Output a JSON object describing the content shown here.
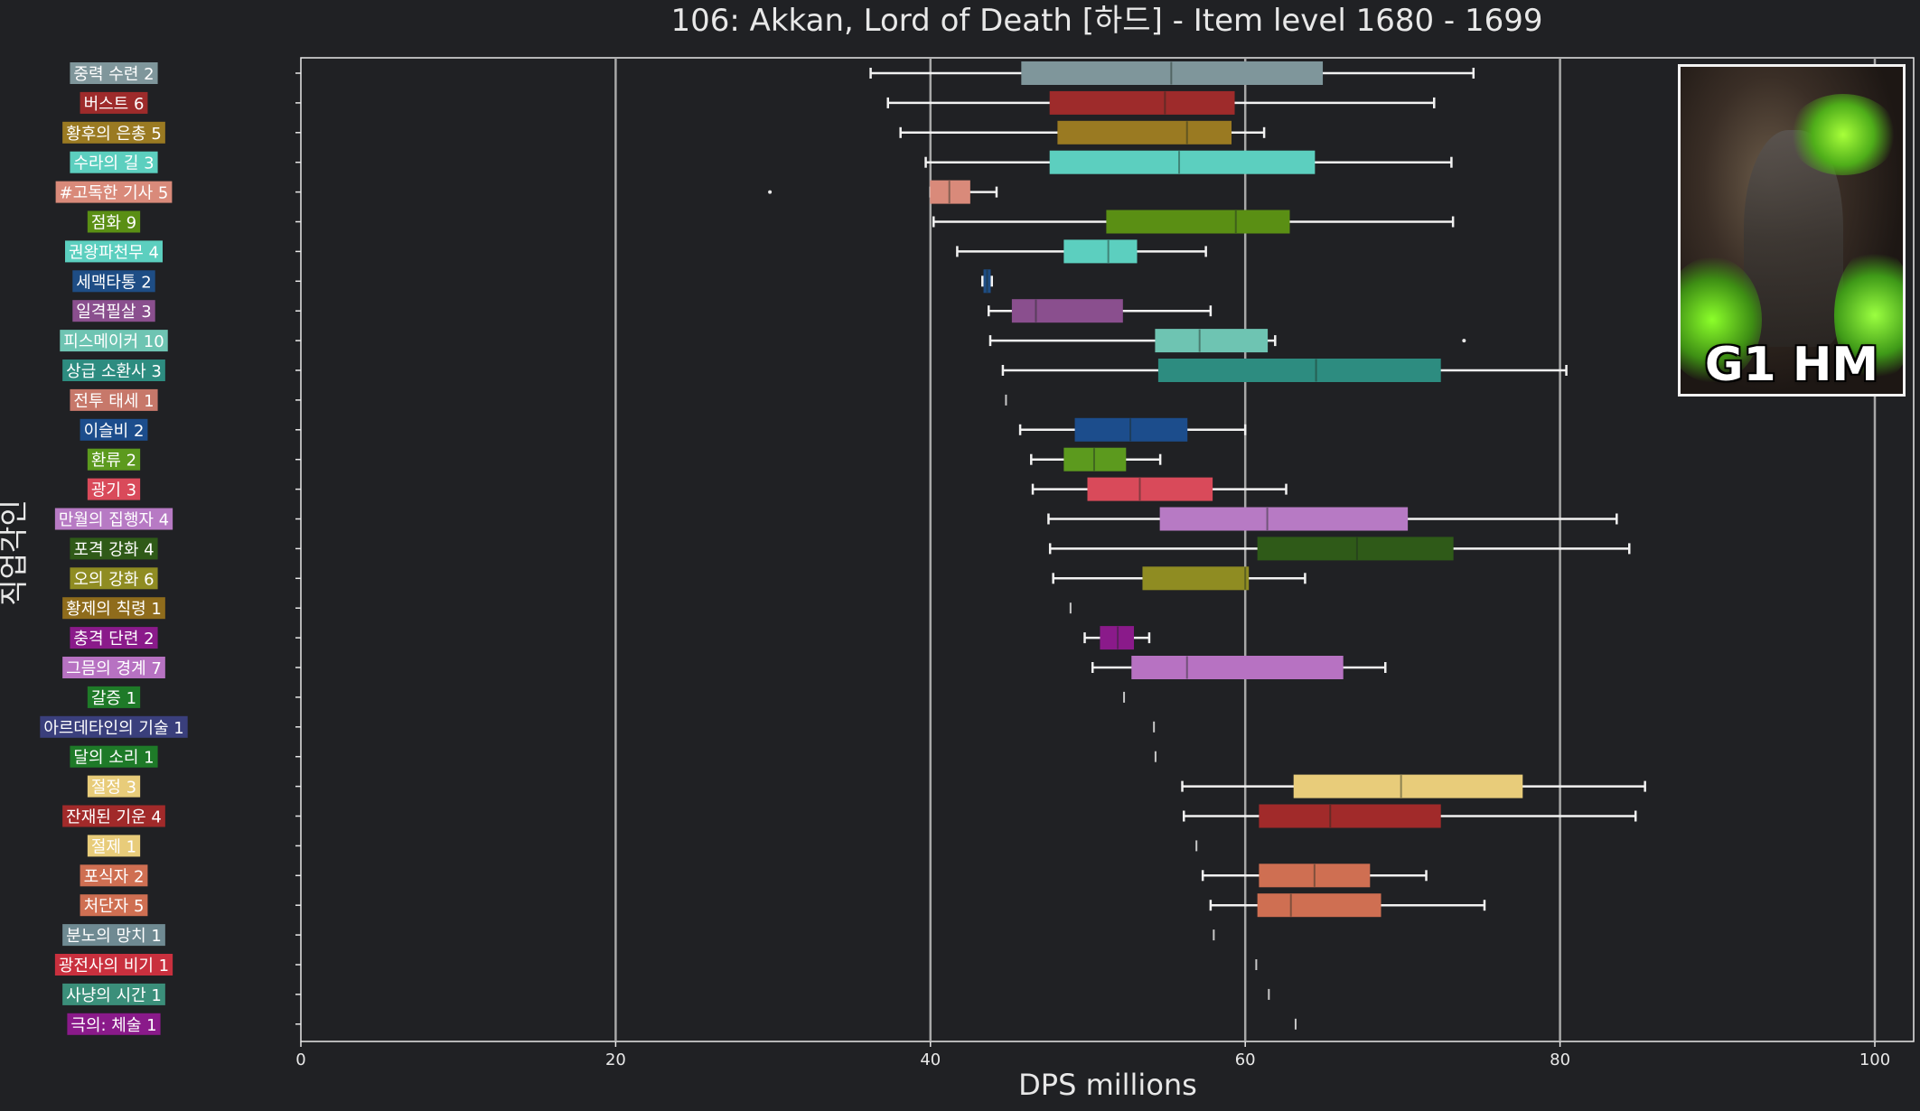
{
  "chart_data": {
    "type": "box",
    "orientation": "horizontal",
    "title": "106: Akkan, Lord of Death [하드] - Item level 1680 - 1699",
    "xlabel": "DPS millions",
    "ylabel": "직업각인",
    "xlim": [
      0,
      102
    ],
    "xticks": [
      0,
      20,
      40,
      60,
      80,
      100
    ],
    "grid": "vertical",
    "badge": "G1 HM",
    "categories": [
      {
        "label": "중력 수련 2",
        "color": "#7f969b",
        "whislo": 36.2,
        "q1": 45.8,
        "med": 55.3,
        "q3": 64.9,
        "whishi": 74.5,
        "outliers": []
      },
      {
        "label": "버스트 6",
        "color": "#9e2b2b",
        "whislo": 37.3,
        "q1": 47.6,
        "med": 54.9,
        "q3": 59.3,
        "whishi": 72.0,
        "outliers": []
      },
      {
        "label": "황후의 은총 5",
        "color": "#9a7a22",
        "whislo": 38.1,
        "q1": 48.1,
        "med": 56.3,
        "q3": 59.1,
        "whishi": 61.2,
        "outliers": []
      },
      {
        "label": "수라의 길 3",
        "color": "#5ccfbf",
        "whislo": 39.7,
        "q1": 47.6,
        "med": 55.8,
        "q3": 64.4,
        "whishi": 73.1,
        "outliers": []
      },
      {
        "label": "#고독한 기사 5",
        "color": "#d98a7a",
        "whislo": 40.0,
        "q1": 40.0,
        "med": 41.2,
        "q3": 42.5,
        "whishi": 44.2,
        "outliers": [
          29.8
        ]
      },
      {
        "label": "점화 9",
        "color": "#5a8f14",
        "whislo": 40.2,
        "q1": 51.2,
        "med": 59.4,
        "q3": 62.8,
        "whishi": 73.2,
        "outliers": []
      },
      {
        "label": "권왕파천무 4",
        "color": "#5ccfbf",
        "whislo": 41.7,
        "q1": 48.5,
        "med": 51.3,
        "q3": 53.1,
        "whishi": 57.5,
        "outliers": []
      },
      {
        "label": "세맥타통 2",
        "color": "#1e4d85",
        "whislo": 43.3,
        "q1": 43.4,
        "med": 43.6,
        "q3": 43.8,
        "whishi": 43.9,
        "outliers": []
      },
      {
        "label": "일격필살 3",
        "color": "#8a4f8e",
        "whislo": 43.7,
        "q1": 45.2,
        "med": 46.7,
        "q3": 52.2,
        "whishi": 57.8,
        "outliers": []
      },
      {
        "label": "피스메이커 10",
        "color": "#6ec4b2",
        "whislo": 43.8,
        "q1": 54.3,
        "med": 57.1,
        "q3": 61.4,
        "whishi": 61.9,
        "outliers": [
          73.9
        ]
      },
      {
        "label": "상급 소환사 3",
        "color": "#2d8c80",
        "whislo": 44.6,
        "q1": 54.5,
        "med": 64.5,
        "q3": 72.4,
        "whishi": 80.4,
        "outliers": []
      },
      {
        "label": "전투 태세 1",
        "color": "#c7786a",
        "whislo": 44.8,
        "q1": 44.8,
        "med": 44.8,
        "q3": 44.8,
        "whishi": 44.8,
        "outliers": []
      },
      {
        "label": "이슬비 2",
        "color": "#1c4d8c",
        "whislo": 45.7,
        "q1": 49.2,
        "med": 52.7,
        "q3": 56.3,
        "whishi": 60.0,
        "outliers": []
      },
      {
        "label": "환류 2",
        "color": "#5c9a1e",
        "whislo": 46.4,
        "q1": 48.5,
        "med": 50.4,
        "q3": 52.4,
        "whishi": 54.6,
        "outliers": []
      },
      {
        "label": "광기 3",
        "color": "#d94a5a",
        "whislo": 46.5,
        "q1": 50.0,
        "med": 53.3,
        "q3": 57.9,
        "whishi": 62.6,
        "outliers": []
      },
      {
        "label": "만월의 집행자 4",
        "color": "#b77ac4",
        "whislo": 47.5,
        "q1": 54.6,
        "med": 61.4,
        "q3": 70.3,
        "whishi": 83.6,
        "outliers": []
      },
      {
        "label": "포격 강화 4",
        "color": "#2f5a18",
        "whislo": 47.6,
        "q1": 60.8,
        "med": 67.1,
        "q3": 73.2,
        "whishi": 84.4,
        "outliers": []
      },
      {
        "label": "오의 강화 6",
        "color": "#8f8c22",
        "whislo": 47.8,
        "q1": 53.5,
        "med": 60.0,
        "q3": 60.2,
        "whishi": 63.8,
        "outliers": []
      },
      {
        "label": "황제의 칙령 1",
        "color": "#8f6c1c",
        "whislo": 48.9,
        "q1": 48.9,
        "med": 48.9,
        "q3": 48.9,
        "whishi": 48.9,
        "outliers": []
      },
      {
        "label": "충격 단련 2",
        "color": "#8a1a8a",
        "whislo": 49.8,
        "q1": 50.8,
        "med": 51.9,
        "q3": 52.9,
        "whishi": 53.9,
        "outliers": []
      },
      {
        "label": "그믐의 경계 7",
        "color": "#b772c2",
        "whislo": 50.3,
        "q1": 52.8,
        "med": 56.3,
        "q3": 66.2,
        "whishi": 68.9,
        "outliers": []
      },
      {
        "label": "갈증 1",
        "color": "#1e7a28",
        "whislo": 52.3,
        "q1": 52.3,
        "med": 52.3,
        "q3": 52.3,
        "whishi": 52.3,
        "outliers": []
      },
      {
        "label": "아르데타인의 기술 1",
        "color": "#3a3f7c",
        "whislo": 54.2,
        "q1": 54.2,
        "med": 54.2,
        "q3": 54.2,
        "whishi": 54.2,
        "outliers": []
      },
      {
        "label": "달의 소리 1",
        "color": "#1e7a28",
        "whislo": 54.3,
        "q1": 54.3,
        "med": 54.3,
        "q3": 54.3,
        "whishi": 54.3,
        "outliers": []
      },
      {
        "label": "절정 3",
        "color": "#e8cc7a",
        "whislo": 56.0,
        "q1": 63.1,
        "med": 69.9,
        "q3": 77.6,
        "whishi": 85.4,
        "outliers": []
      },
      {
        "label": "잔재된 기운 4",
        "color": "#a12a2a",
        "whislo": 56.1,
        "q1": 60.9,
        "med": 65.4,
        "q3": 72.4,
        "whishi": 84.8,
        "outliers": []
      },
      {
        "label": "절제 1",
        "color": "#e8cc7a",
        "whislo": 56.9,
        "q1": 56.9,
        "med": 56.9,
        "q3": 56.9,
        "whishi": 56.9,
        "outliers": []
      },
      {
        "label": "포식자 2",
        "color": "#cf6f52",
        "whislo": 57.3,
        "q1": 60.9,
        "med": 64.4,
        "q3": 67.9,
        "whishi": 71.5,
        "outliers": []
      },
      {
        "label": "처단자 5",
        "color": "#cf6f52",
        "whislo": 57.8,
        "q1": 60.8,
        "med": 62.9,
        "q3": 68.6,
        "whishi": 75.2,
        "outliers": []
      },
      {
        "label": "분노의 망치 1",
        "color": "#6f8a92",
        "whislo": 58.0,
        "q1": 58.0,
        "med": 58.0,
        "q3": 58.0,
        "whishi": 58.0,
        "outliers": []
      },
      {
        "label": "광전사의 비기 1",
        "color": "#c9303e",
        "whislo": 60.7,
        "q1": 60.7,
        "med": 60.7,
        "q3": 60.7,
        "whishi": 60.7,
        "outliers": []
      },
      {
        "label": "사냥의 시간 1",
        "color": "#3b8f7a",
        "whislo": 61.5,
        "q1": 61.5,
        "med": 61.5,
        "q3": 61.5,
        "whishi": 61.5,
        "outliers": []
      },
      {
        "label": "극의: 체술 1",
        "color": "#8a1a8a",
        "whislo": 63.2,
        "q1": 63.2,
        "med": 63.2,
        "q3": 63.2,
        "whishi": 63.2,
        "outliers": []
      }
    ]
  }
}
